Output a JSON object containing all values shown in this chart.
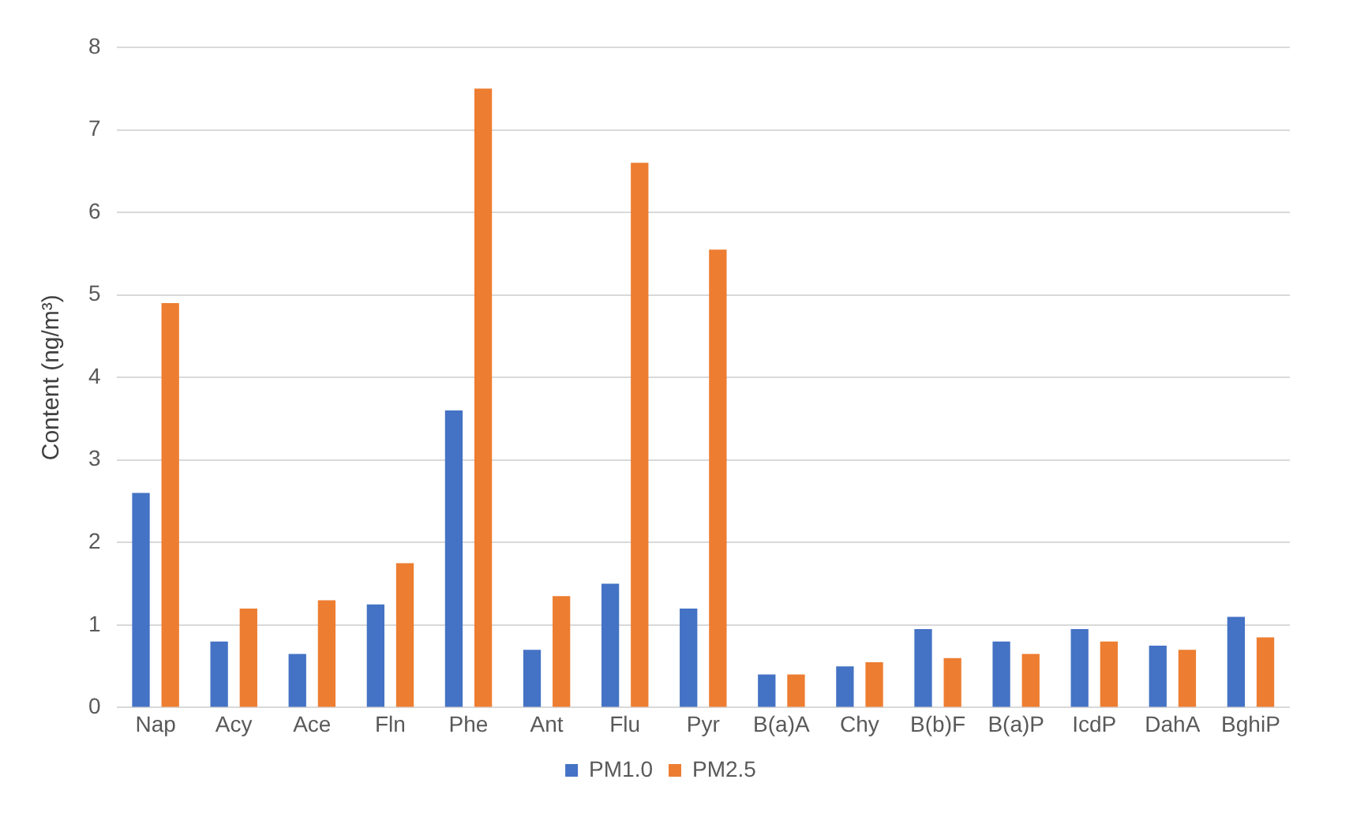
{
  "chart_data": {
    "type": "bar",
    "ylabel": "Content (ng/m³)",
    "categories": [
      "Nap",
      "Acy",
      "Ace",
      "Fln",
      "Phe",
      "Ant",
      "Flu",
      "Pyr",
      "B(a)A",
      "Chy",
      "B(b)F",
      "B(a)P",
      "IcdP",
      "DahA",
      "BghiP"
    ],
    "series": [
      {
        "name": "PM1.0",
        "color": "#4472c4",
        "values": [
          2.6,
          0.8,
          0.65,
          1.25,
          3.6,
          0.7,
          1.5,
          1.2,
          0.4,
          0.5,
          0.95,
          0.8,
          0.95,
          0.75,
          1.1
        ]
      },
      {
        "name": "PM2.5",
        "color": "#ed7d31",
        "values": [
          4.9,
          1.2,
          1.3,
          1.75,
          7.5,
          1.35,
          6.6,
          5.55,
          0.4,
          0.55,
          0.6,
          0.65,
          0.8,
          0.7,
          0.85
        ]
      }
    ],
    "ylim": [
      0,
      8
    ],
    "yticks": [
      0,
      1,
      2,
      3,
      4,
      5,
      6,
      7,
      8
    ],
    "grid": "y",
    "legend": "bottom"
  }
}
